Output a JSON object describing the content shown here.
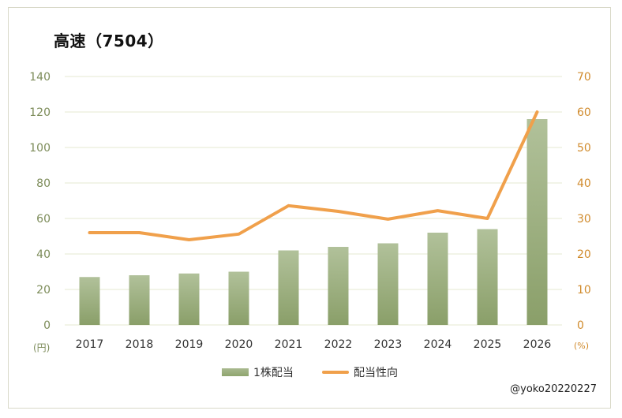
{
  "title": "高速（7504）",
  "credit": "@yoko20220227",
  "colors": {
    "bar_top": "#b1c19a",
    "bar_bottom": "#8a9f69",
    "line": "#f0a04b",
    "left_axis": "#7d8c5a",
    "right_axis": "#d08a2b",
    "grid": "#e4e8d2"
  },
  "chart_data": {
    "type": "bar",
    "title": "高速（7504）",
    "categories": [
      "2017",
      "2018",
      "2019",
      "2020",
      "2021",
      "2022",
      "2023",
      "2024",
      "2025",
      "2026"
    ],
    "series": [
      {
        "name": "1株配当",
        "type": "bar",
        "axis": "left",
        "values": [
          27,
          28,
          29,
          30,
          42,
          44,
          46,
          52,
          54,
          116
        ]
      },
      {
        "name": "配当性向",
        "type": "line",
        "axis": "right",
        "values": [
          26,
          26,
          24,
          25.6,
          33.6,
          32,
          29.8,
          32.2,
          30,
          60
        ]
      }
    ],
    "y_left": {
      "label": "(円)",
      "ylim": [
        0,
        140
      ],
      "ticks": [
        "0",
        "20",
        "40",
        "60",
        "80",
        "100",
        "120",
        "140"
      ]
    },
    "y_right": {
      "label": "(%)",
      "ylim": [
        0,
        70
      ],
      "ticks": [
        "0",
        "10",
        "20",
        "30",
        "40",
        "50",
        "60",
        "70"
      ]
    },
    "grid": true,
    "legend": "bottom"
  }
}
